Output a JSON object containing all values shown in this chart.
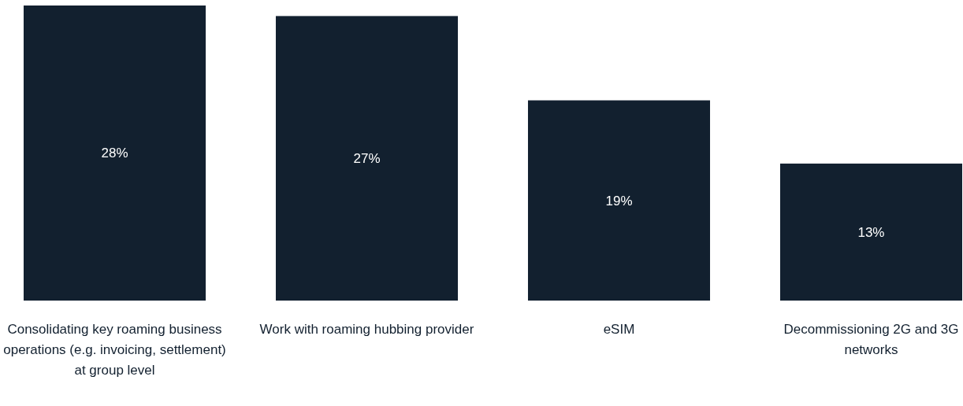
{
  "chart_data": {
    "type": "bar",
    "categories": [
      "Consolidating key roaming business operations (e.g. invoicing, settlement) at group level",
      "Work with roaming hubbing provider",
      "eSIM",
      "Decommissioning 2G and 3G networks"
    ],
    "values": [
      28,
      27,
      19,
      13
    ],
    "value_labels": [
      "28%",
      "27%",
      "19%",
      "13%"
    ],
    "color": "#12202f"
  }
}
